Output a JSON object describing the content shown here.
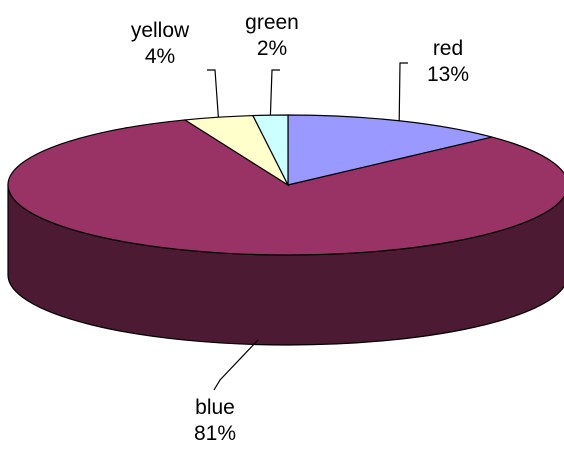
{
  "chart_data": {
    "type": "pie",
    "title": "",
    "slices": [
      {
        "name": "red",
        "value": 13,
        "label": "13%",
        "color": "#9999ff"
      },
      {
        "name": "blue",
        "value": 81,
        "label": "81%",
        "color": "#993366"
      },
      {
        "name": "yellow",
        "value": 4,
        "label": "4%",
        "color": "#ffffcc"
      },
      {
        "name": "green",
        "value": 2,
        "label": "2%",
        "color": "#ccffff"
      }
    ],
    "style": "3d-pie",
    "side_color": "#4d1a33",
    "legend": "none"
  }
}
